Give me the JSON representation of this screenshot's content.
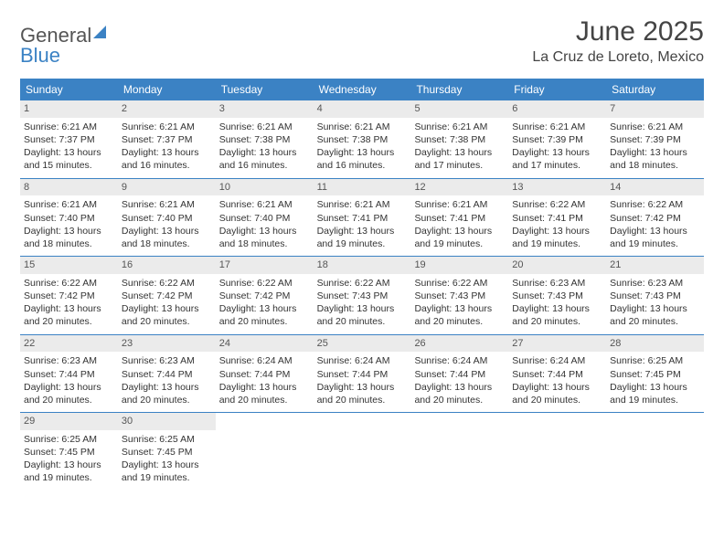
{
  "colors": {
    "accent": "#3b82c4",
    "day_num_bg": "#ebebeb",
    "text": "#333333",
    "header_text": "#444444",
    "white": "#ffffff"
  },
  "logo": {
    "text1": "General",
    "text2": "Blue"
  },
  "title": "June 2025",
  "location": "La Cruz de Loreto, Mexico",
  "day_headers": [
    "Sunday",
    "Monday",
    "Tuesday",
    "Wednesday",
    "Thursday",
    "Friday",
    "Saturday"
  ],
  "weeks": [
    [
      {
        "n": "1",
        "sr": "Sunrise: 6:21 AM",
        "ss": "Sunset: 7:37 PM",
        "d1": "Daylight: 13 hours",
        "d2": "and 15 minutes."
      },
      {
        "n": "2",
        "sr": "Sunrise: 6:21 AM",
        "ss": "Sunset: 7:37 PM",
        "d1": "Daylight: 13 hours",
        "d2": "and 16 minutes."
      },
      {
        "n": "3",
        "sr": "Sunrise: 6:21 AM",
        "ss": "Sunset: 7:38 PM",
        "d1": "Daylight: 13 hours",
        "d2": "and 16 minutes."
      },
      {
        "n": "4",
        "sr": "Sunrise: 6:21 AM",
        "ss": "Sunset: 7:38 PM",
        "d1": "Daylight: 13 hours",
        "d2": "and 16 minutes."
      },
      {
        "n": "5",
        "sr": "Sunrise: 6:21 AM",
        "ss": "Sunset: 7:38 PM",
        "d1": "Daylight: 13 hours",
        "d2": "and 17 minutes."
      },
      {
        "n": "6",
        "sr": "Sunrise: 6:21 AM",
        "ss": "Sunset: 7:39 PM",
        "d1": "Daylight: 13 hours",
        "d2": "and 17 minutes."
      },
      {
        "n": "7",
        "sr": "Sunrise: 6:21 AM",
        "ss": "Sunset: 7:39 PM",
        "d1": "Daylight: 13 hours",
        "d2": "and 18 minutes."
      }
    ],
    [
      {
        "n": "8",
        "sr": "Sunrise: 6:21 AM",
        "ss": "Sunset: 7:40 PM",
        "d1": "Daylight: 13 hours",
        "d2": "and 18 minutes."
      },
      {
        "n": "9",
        "sr": "Sunrise: 6:21 AM",
        "ss": "Sunset: 7:40 PM",
        "d1": "Daylight: 13 hours",
        "d2": "and 18 minutes."
      },
      {
        "n": "10",
        "sr": "Sunrise: 6:21 AM",
        "ss": "Sunset: 7:40 PM",
        "d1": "Daylight: 13 hours",
        "d2": "and 18 minutes."
      },
      {
        "n": "11",
        "sr": "Sunrise: 6:21 AM",
        "ss": "Sunset: 7:41 PM",
        "d1": "Daylight: 13 hours",
        "d2": "and 19 minutes."
      },
      {
        "n": "12",
        "sr": "Sunrise: 6:21 AM",
        "ss": "Sunset: 7:41 PM",
        "d1": "Daylight: 13 hours",
        "d2": "and 19 minutes."
      },
      {
        "n": "13",
        "sr": "Sunrise: 6:22 AM",
        "ss": "Sunset: 7:41 PM",
        "d1": "Daylight: 13 hours",
        "d2": "and 19 minutes."
      },
      {
        "n": "14",
        "sr": "Sunrise: 6:22 AM",
        "ss": "Sunset: 7:42 PM",
        "d1": "Daylight: 13 hours",
        "d2": "and 19 minutes."
      }
    ],
    [
      {
        "n": "15",
        "sr": "Sunrise: 6:22 AM",
        "ss": "Sunset: 7:42 PM",
        "d1": "Daylight: 13 hours",
        "d2": "and 20 minutes."
      },
      {
        "n": "16",
        "sr": "Sunrise: 6:22 AM",
        "ss": "Sunset: 7:42 PM",
        "d1": "Daylight: 13 hours",
        "d2": "and 20 minutes."
      },
      {
        "n": "17",
        "sr": "Sunrise: 6:22 AM",
        "ss": "Sunset: 7:42 PM",
        "d1": "Daylight: 13 hours",
        "d2": "and 20 minutes."
      },
      {
        "n": "18",
        "sr": "Sunrise: 6:22 AM",
        "ss": "Sunset: 7:43 PM",
        "d1": "Daylight: 13 hours",
        "d2": "and 20 minutes."
      },
      {
        "n": "19",
        "sr": "Sunrise: 6:22 AM",
        "ss": "Sunset: 7:43 PM",
        "d1": "Daylight: 13 hours",
        "d2": "and 20 minutes."
      },
      {
        "n": "20",
        "sr": "Sunrise: 6:23 AM",
        "ss": "Sunset: 7:43 PM",
        "d1": "Daylight: 13 hours",
        "d2": "and 20 minutes."
      },
      {
        "n": "21",
        "sr": "Sunrise: 6:23 AM",
        "ss": "Sunset: 7:43 PM",
        "d1": "Daylight: 13 hours",
        "d2": "and 20 minutes."
      }
    ],
    [
      {
        "n": "22",
        "sr": "Sunrise: 6:23 AM",
        "ss": "Sunset: 7:44 PM",
        "d1": "Daylight: 13 hours",
        "d2": "and 20 minutes."
      },
      {
        "n": "23",
        "sr": "Sunrise: 6:23 AM",
        "ss": "Sunset: 7:44 PM",
        "d1": "Daylight: 13 hours",
        "d2": "and 20 minutes."
      },
      {
        "n": "24",
        "sr": "Sunrise: 6:24 AM",
        "ss": "Sunset: 7:44 PM",
        "d1": "Daylight: 13 hours",
        "d2": "and 20 minutes."
      },
      {
        "n": "25",
        "sr": "Sunrise: 6:24 AM",
        "ss": "Sunset: 7:44 PM",
        "d1": "Daylight: 13 hours",
        "d2": "and 20 minutes."
      },
      {
        "n": "26",
        "sr": "Sunrise: 6:24 AM",
        "ss": "Sunset: 7:44 PM",
        "d1": "Daylight: 13 hours",
        "d2": "and 20 minutes."
      },
      {
        "n": "27",
        "sr": "Sunrise: 6:24 AM",
        "ss": "Sunset: 7:44 PM",
        "d1": "Daylight: 13 hours",
        "d2": "and 20 minutes."
      },
      {
        "n": "28",
        "sr": "Sunrise: 6:25 AM",
        "ss": "Sunset: 7:45 PM",
        "d1": "Daylight: 13 hours",
        "d2": "and 19 minutes."
      }
    ],
    [
      {
        "n": "29",
        "sr": "Sunrise: 6:25 AM",
        "ss": "Sunset: 7:45 PM",
        "d1": "Daylight: 13 hours",
        "d2": "and 19 minutes."
      },
      {
        "n": "30",
        "sr": "Sunrise: 6:25 AM",
        "ss": "Sunset: 7:45 PM",
        "d1": "Daylight: 13 hours",
        "d2": "and 19 minutes."
      },
      null,
      null,
      null,
      null,
      null
    ]
  ]
}
